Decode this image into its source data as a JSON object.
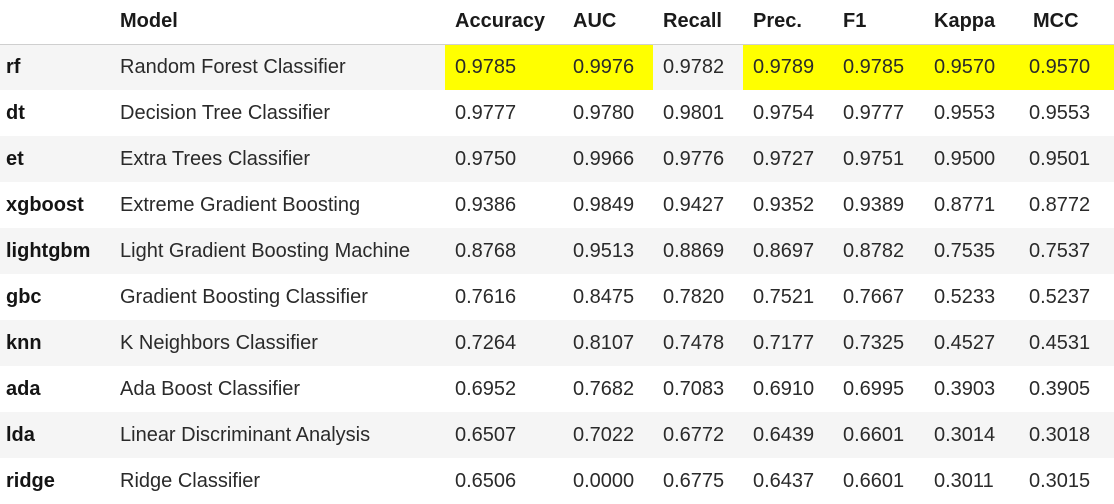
{
  "table": {
    "headers": {
      "id": "",
      "model": "Model",
      "accuracy": "Accuracy",
      "auc": "AUC",
      "recall": "Recall",
      "prec": "Prec.",
      "f1": "F1",
      "kappa": "Kappa",
      "mcc": "MCC"
    },
    "highlight_color": "#ffff00",
    "highlighted_cells": {
      "row": "rf",
      "columns": [
        "Accuracy",
        "AUC",
        "Prec.",
        "F1",
        "Kappa",
        "MCC"
      ]
    },
    "rows": [
      {
        "id": "rf",
        "model": "Random Forest Classifier",
        "accuracy": "0.9785",
        "auc": "0.9976",
        "recall": "0.9782",
        "prec": "0.9789",
        "f1": "0.9785",
        "kappa": "0.9570",
        "mcc": "0.9570"
      },
      {
        "id": "dt",
        "model": "Decision Tree Classifier",
        "accuracy": "0.9777",
        "auc": "0.9780",
        "recall": "0.9801",
        "prec": "0.9754",
        "f1": "0.9777",
        "kappa": "0.9553",
        "mcc": "0.9553"
      },
      {
        "id": "et",
        "model": "Extra Trees Classifier",
        "accuracy": "0.9750",
        "auc": "0.9966",
        "recall": "0.9776",
        "prec": "0.9727",
        "f1": "0.9751",
        "kappa": "0.9500",
        "mcc": "0.9501"
      },
      {
        "id": "xgboost",
        "model": "Extreme Gradient Boosting",
        "accuracy": "0.9386",
        "auc": "0.9849",
        "recall": "0.9427",
        "prec": "0.9352",
        "f1": "0.9389",
        "kappa": "0.8771",
        "mcc": "0.8772"
      },
      {
        "id": "lightgbm",
        "model": "Light Gradient Boosting Machine",
        "accuracy": "0.8768",
        "auc": "0.9513",
        "recall": "0.8869",
        "prec": "0.8697",
        "f1": "0.8782",
        "kappa": "0.7535",
        "mcc": "0.7537"
      },
      {
        "id": "gbc",
        "model": "Gradient Boosting Classifier",
        "accuracy": "0.7616",
        "auc": "0.8475",
        "recall": "0.7820",
        "prec": "0.7521",
        "f1": "0.7667",
        "kappa": "0.5233",
        "mcc": "0.5237"
      },
      {
        "id": "knn",
        "model": "K Neighbors Classifier",
        "accuracy": "0.7264",
        "auc": "0.8107",
        "recall": "0.7478",
        "prec": "0.7177",
        "f1": "0.7325",
        "kappa": "0.4527",
        "mcc": "0.4531"
      },
      {
        "id": "ada",
        "model": "Ada Boost Classifier",
        "accuracy": "0.6952",
        "auc": "0.7682",
        "recall": "0.7083",
        "prec": "0.6910",
        "f1": "0.6995",
        "kappa": "0.3903",
        "mcc": "0.3905"
      },
      {
        "id": "lda",
        "model": "Linear Discriminant Analysis",
        "accuracy": "0.6507",
        "auc": "0.7022",
        "recall": "0.6772",
        "prec": "0.6439",
        "f1": "0.6601",
        "kappa": "0.3014",
        "mcc": "0.3018"
      },
      {
        "id": "ridge",
        "model": "Ridge Classifier",
        "accuracy": "0.6506",
        "auc": "0.0000",
        "recall": "0.6775",
        "prec": "0.6437",
        "f1": "0.6601",
        "kappa": "0.3011",
        "mcc": "0.3015"
      }
    ]
  }
}
